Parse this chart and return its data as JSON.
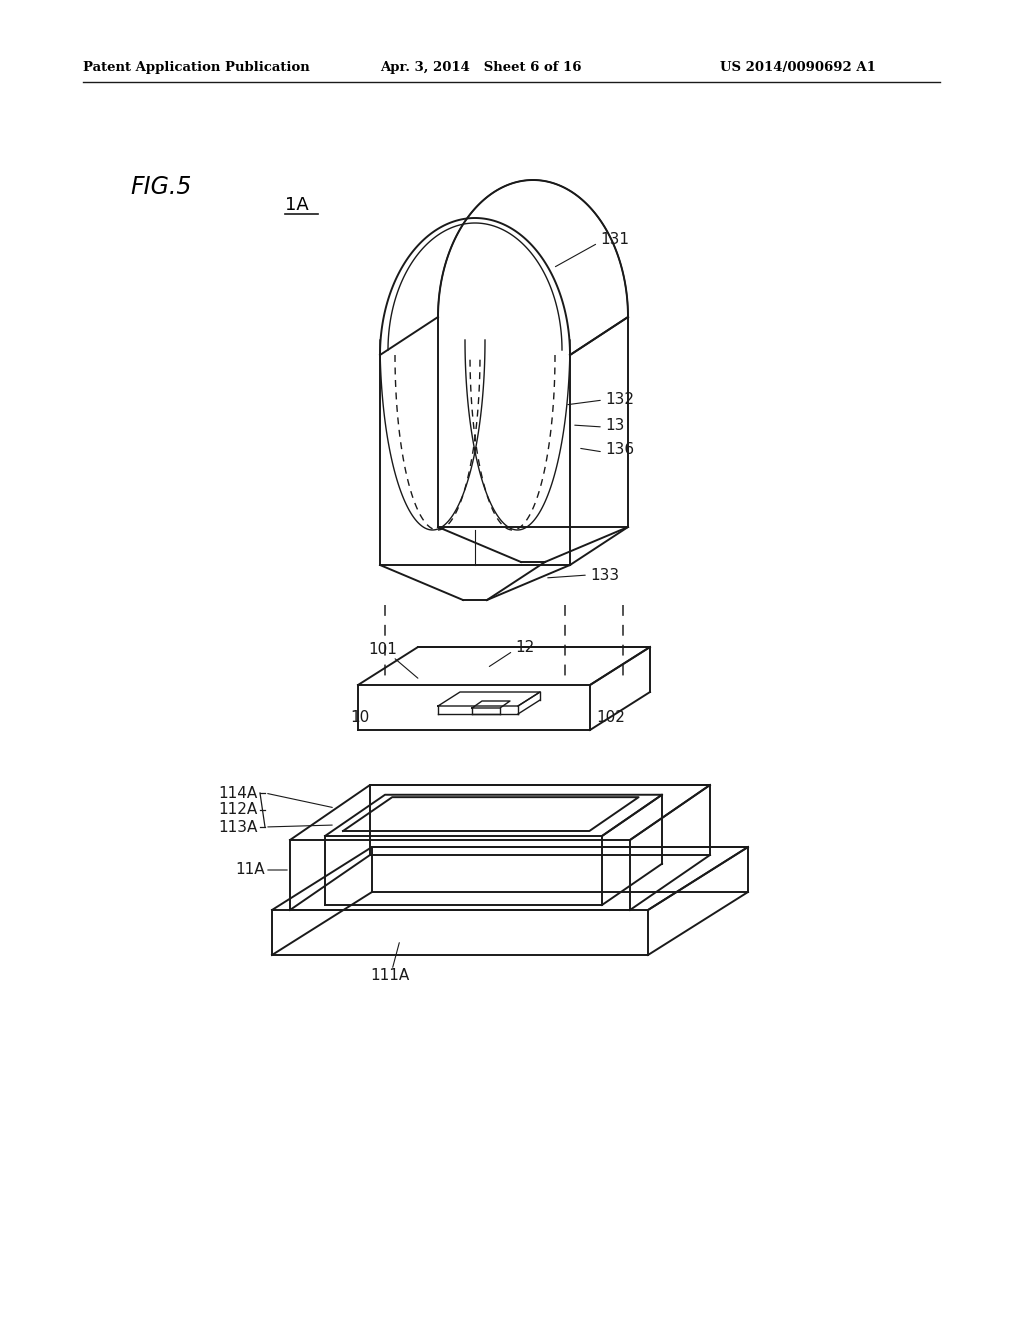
{
  "bg_color": "#ffffff",
  "lc": "#1a1a1a",
  "header_left": "Patent Application Publication",
  "header_center": "Apr. 3, 2014   Sheet 6 of 16",
  "header_right": "US 2014/0090692 A1",
  "fig_label": "FIG.5",
  "label_1A": "1A"
}
